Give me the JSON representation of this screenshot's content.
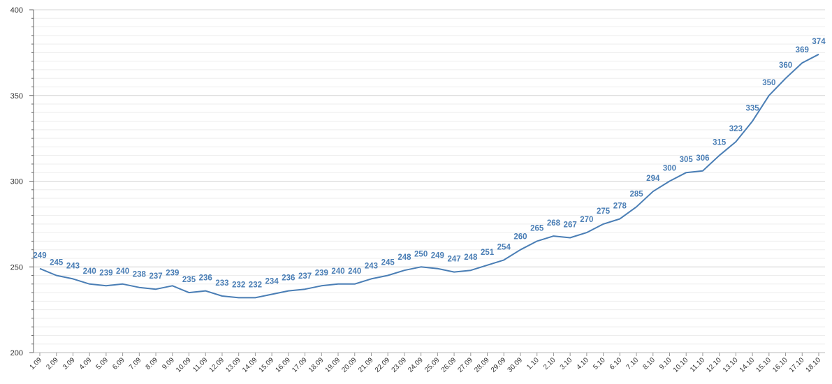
{
  "chart_data": {
    "type": "line",
    "title": "",
    "xlabel": "",
    "ylabel": "",
    "ylim": [
      200,
      400
    ],
    "yticks": [
      200,
      250,
      300,
      350,
      400
    ],
    "grid": true,
    "legend": "none",
    "line_color": "#4a7eb5",
    "label_color": "#4a7eb5",
    "categories": [
      "1.09",
      "2.09",
      "3.09",
      "4.09",
      "5.09",
      "6.09",
      "7.09",
      "8.09",
      "9.09",
      "10.09",
      "11.09",
      "12.09",
      "13.09",
      "14.09",
      "15.09",
      "16.09",
      "17.09",
      "18.09",
      "19.09",
      "20.09",
      "21.09",
      "22.09",
      "23.09",
      "24.09",
      "25.09",
      "26.09",
      "27.09",
      "28.09",
      "29.09",
      "30.09",
      "1.10",
      "2.10",
      "3.10",
      "4.10",
      "5.10",
      "6.10",
      "7.10",
      "8.10",
      "9.10",
      "10.10",
      "11.10",
      "12.10",
      "13.10",
      "14.10",
      "15.10",
      "16.10",
      "17.10",
      "18.10"
    ],
    "values": [
      249,
      245,
      243,
      240,
      239,
      240,
      238,
      237,
      239,
      235,
      236,
      233,
      232,
      232,
      234,
      236,
      237,
      239,
      240,
      240,
      243,
      245,
      248,
      250,
      249,
      247,
      248,
      251,
      254,
      260,
      265,
      268,
      267,
      270,
      275,
      278,
      285,
      294,
      300,
      305,
      306,
      315,
      323,
      335,
      350,
      360,
      369,
      374
    ]
  }
}
